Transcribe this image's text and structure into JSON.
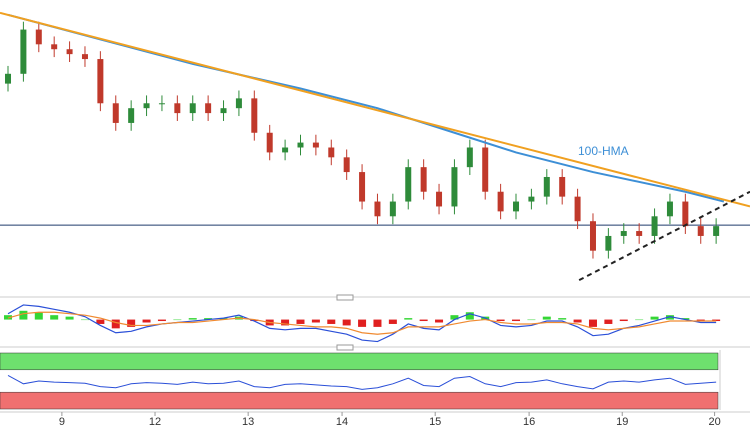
{
  "chart_data": {
    "type": "candlestick",
    "xlim": [
      -0.52,
      48.2
    ],
    "ylim": [
      0,
      290
    ],
    "up_color": "#2e8b3a",
    "down_color": "#c0392b",
    "candles": {
      "open": [
        210,
        220,
        265,
        250,
        245,
        240,
        235,
        190,
        170,
        185,
        190,
        190,
        180,
        190,
        180,
        185,
        195,
        160,
        140,
        145,
        150,
        145,
        135,
        120,
        90,
        75,
        90,
        125,
        100,
        85,
        125,
        145,
        100,
        80,
        90,
        95,
        115,
        95,
        70,
        40,
        55,
        60,
        55,
        75,
        90,
        65,
        55
      ],
      "high": [
        228,
        273,
        273,
        258,
        253,
        248,
        243,
        198,
        193,
        198,
        198,
        198,
        198,
        198,
        193,
        203,
        203,
        168,
        153,
        158,
        158,
        153,
        143,
        128,
        98,
        98,
        133,
        133,
        108,
        133,
        153,
        153,
        108,
        98,
        103,
        123,
        123,
        103,
        78,
        63,
        68,
        68,
        83,
        98,
        98,
        73,
        73
      ],
      "low": [
        202,
        212,
        242,
        237,
        232,
        227,
        182,
        162,
        162,
        177,
        182,
        172,
        172,
        172,
        172,
        177,
        152,
        132,
        132,
        137,
        137,
        127,
        112,
        82,
        67,
        67,
        82,
        92,
        77,
        77,
        117,
        92,
        72,
        72,
        82,
        87,
        87,
        62,
        32,
        32,
        47,
        47,
        47,
        67,
        57,
        47,
        47
      ],
      "close": [
        220,
        265,
        250,
        245,
        240,
        235,
        190,
        170,
        185,
        190,
        190,
        180,
        190,
        180,
        185,
        195,
        160,
        140,
        145,
        150,
        145,
        135,
        120,
        90,
        75,
        90,
        125,
        100,
        85,
        125,
        145,
        100,
        80,
        90,
        95,
        115,
        95,
        70,
        40,
        55,
        60,
        55,
        75,
        90,
        65,
        55,
        65
      ]
    },
    "hma": {
      "name": "100-HMA",
      "color": "#3d8fd6",
      "x": [
        0,
        6,
        12,
        19,
        24,
        29,
        33,
        38,
        44,
        46.5
      ],
      "values": [
        280,
        255,
        230,
        205,
        185,
        160,
        140,
        120,
        100,
        90
      ]
    },
    "trendline": {
      "color": "#f0a020",
      "x": [
        -0.52,
        48.2
      ],
      "values": [
        282,
        85
      ]
    },
    "support": {
      "color": "#222222",
      "x": [
        37.1,
        48.2
      ],
      "values": [
        10,
        100
      ]
    },
    "hline": {
      "color": "#1f3a6b",
      "value": 66
    },
    "macd": {
      "ylim": [
        -16,
        12
      ],
      "histogram": [
        3,
        6,
        5,
        3,
        2,
        0,
        -3,
        -6,
        -5,
        -2,
        -1,
        0,
        1,
        1,
        1,
        2,
        -1,
        -4,
        -4,
        -3,
        -2,
        -3,
        -4,
        -5,
        -5,
        -3,
        1,
        -1,
        -2,
        3,
        5,
        2,
        -1,
        -1,
        0,
        2,
        1,
        -2,
        -5,
        -3,
        -1,
        0,
        2,
        3,
        1,
        -1,
        -1
      ],
      "macd": [
        4,
        10,
        9,
        7,
        5,
        2,
        -4,
        -9,
        -8,
        -5,
        -3,
        -2,
        -1,
        0,
        1,
        3,
        -1,
        -6,
        -7,
        -6,
        -6,
        -8,
        -10,
        -14,
        -15,
        -10,
        -3,
        -6,
        -7,
        0,
        4,
        1,
        -4,
        -5,
        -4,
        -1,
        -1,
        -5,
        -11,
        -10,
        -6,
        -4,
        -1,
        2,
        0,
        -2,
        -2
      ],
      "signal": [
        1,
        4,
        5,
        5,
        4,
        3,
        1,
        -2,
        -4,
        -4,
        -3,
        -2,
        -2,
        -1,
        0,
        1,
        0,
        -2,
        -3,
        -4,
        -5,
        -5,
        -6,
        -9,
        -10,
        -9,
        -5,
        -5,
        -5,
        -3,
        -1,
        0,
        -2,
        -3,
        -3,
        -2,
        -2,
        -3,
        -6,
        -7,
        -6,
        -5,
        -3,
        -1,
        -1,
        -1,
        -1
      ],
      "pos_color": "#35d635",
      "neg_color": "#e02020",
      "macd_color": "#2a4fd8",
      "signal_color": "#f08a30"
    },
    "rsi": {
      "ylim": [
        0,
        100
      ],
      "bands": [
        30,
        70
      ],
      "values": [
        60,
        45,
        50,
        48,
        47,
        46,
        40,
        38,
        45,
        47,
        46,
        44,
        48,
        45,
        46,
        50,
        40,
        38,
        44,
        45,
        43,
        41,
        40,
        35,
        38,
        45,
        55,
        42,
        40,
        55,
        58,
        45,
        40,
        47,
        48,
        52,
        45,
        40,
        36,
        48,
        50,
        48,
        52,
        55,
        44,
        46,
        48
      ],
      "color": "#2a4fd8",
      "upper_color": "#6ee06e",
      "lower_color": "#f07070"
    },
    "xticks": [
      {
        "value": 3.5,
        "label": "9"
      },
      {
        "value": 9.55,
        "label": "12"
      },
      {
        "value": 15.6,
        "label": "13"
      },
      {
        "value": 21.7,
        "label": "14"
      },
      {
        "value": 27.75,
        "label": "15"
      },
      {
        "value": 33.85,
        "label": "16"
      },
      {
        "value": 39.9,
        "label": "19"
      },
      {
        "value": 45.9,
        "label": "20"
      }
    ]
  }
}
